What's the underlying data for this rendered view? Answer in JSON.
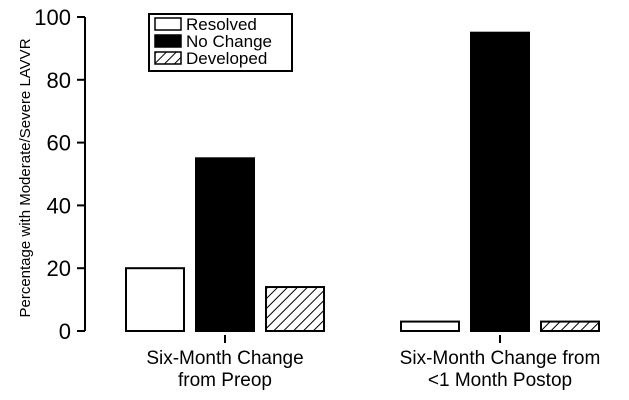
{
  "chart_data": {
    "type": "bar",
    "categories": [
      [
        "Six-Month Change",
        "from Preop"
      ],
      [
        "Six-Month Change from",
        "<1 Month Postop"
      ]
    ],
    "series": [
      {
        "name": "Resolved",
        "values": [
          20,
          3
        ],
        "fill": "#ffffff",
        "pattern": "none"
      },
      {
        "name": "No Change",
        "values": [
          55,
          95
        ],
        "fill": "#000000",
        "pattern": "none"
      },
      {
        "name": "Developed",
        "values": [
          14,
          3
        ],
        "fill": "#ffffff",
        "pattern": "diagonal-hatch"
      }
    ],
    "title": "",
    "xlabel": "",
    "ylabel": "Percentage with Moderate/Severe LAVVR",
    "ylim": [
      0,
      100
    ],
    "yticks": [
      0,
      20,
      40,
      60,
      80,
      100
    ],
    "grid": false,
    "legend_position": "top-left"
  }
}
